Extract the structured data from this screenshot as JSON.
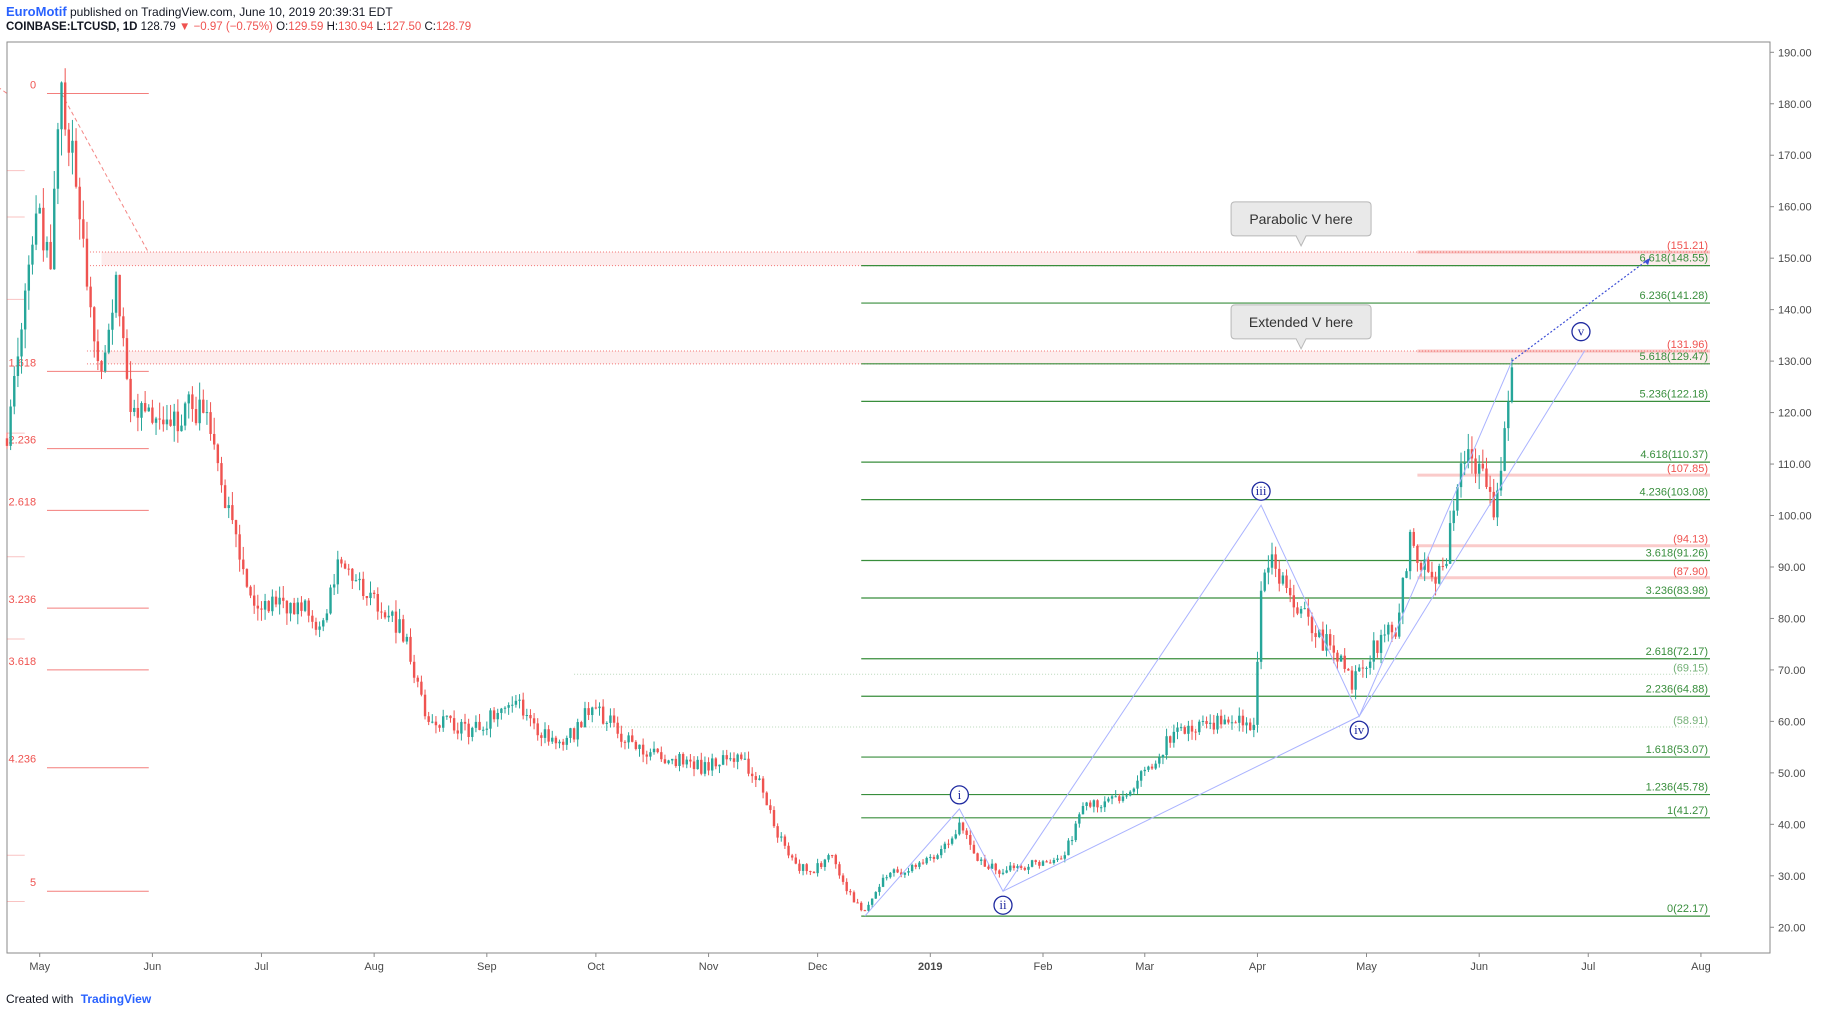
{
  "header": {
    "author": "EuroMotif",
    "published": "published on TradingView.com, June 10, 2019 20:39:31 EDT",
    "symbol": "COINBASE:LTCUSD, 1D",
    "last": "128.79",
    "arrow": "▼",
    "change": "−0.97 (−0.75%)",
    "o_label": "O:",
    "o": "129.59",
    "h_label": "H:",
    "h": "130.94",
    "l_label": "L:",
    "l": "127.50",
    "c_label": "C:",
    "c": "128.79"
  },
  "footer": {
    "created": "Created with",
    "brand": "TradingView"
  },
  "colors": {
    "up": "#26a69a",
    "down": "#ef5350",
    "fib_green": "#388e3c",
    "fib_red": "#ef5350",
    "zone": "#f8c8c8",
    "wave": "#1f2aa0",
    "trend": "#aab3ff"
  },
  "chart_data": {
    "type": "candlestick",
    "title": "",
    "ylim": [
      15,
      192
    ],
    "y_ticks": [
      "20.00",
      "30.00",
      "40.00",
      "50.00",
      "60.00",
      "70.00",
      "80.00",
      "90.00",
      "100.00",
      "110.00",
      "120.00",
      "130.00",
      "140.00",
      "150.00",
      "160.00",
      "170.00",
      "180.00",
      "190.00"
    ],
    "x_ticks": [
      "May",
      "Jun",
      "Jul",
      "Aug",
      "Sep",
      "Oct",
      "Nov",
      "Dec",
      "2019",
      "Feb",
      "Mar",
      "Apr",
      "May",
      "Jun",
      "Jul",
      "Aug"
    ],
    "x_range": [
      "2018-04-22",
      "2019-08-20"
    ],
    "price_path": [
      [
        "2018-04-22",
        115
      ],
      [
        "2018-04-26",
        135
      ],
      [
        "2018-04-30",
        158
      ],
      [
        "2018-05-04",
        150
      ],
      [
        "2018-05-07",
        182
      ],
      [
        "2018-05-12",
        160
      ],
      [
        "2018-05-17",
        128
      ],
      [
        "2018-05-22",
        145
      ],
      [
        "2018-05-27",
        118
      ],
      [
        "2018-06-01",
        120
      ],
      [
        "2018-06-05",
        118
      ],
      [
        "2018-06-10",
        120
      ],
      [
        "2018-06-16",
        122
      ],
      [
        "2018-06-22",
        100
      ],
      [
        "2018-06-28",
        85
      ],
      [
        "2018-07-05",
        82
      ],
      [
        "2018-07-12",
        82
      ],
      [
        "2018-07-18",
        78
      ],
      [
        "2018-07-22",
        90
      ],
      [
        "2018-07-25",
        88
      ],
      [
        "2018-07-30",
        85
      ],
      [
        "2018-08-05",
        82
      ],
      [
        "2018-08-10",
        75
      ],
      [
        "2018-08-15",
        62
      ],
      [
        "2018-08-20",
        60
      ],
      [
        "2018-08-26",
        58
      ],
      [
        "2018-09-01",
        60
      ],
      [
        "2018-09-06",
        63
      ],
      [
        "2018-09-10",
        64
      ],
      [
        "2018-09-15",
        58
      ],
      [
        "2018-09-20",
        56
      ],
      [
        "2018-09-25",
        58
      ],
      [
        "2018-09-29",
        63
      ],
      [
        "2018-10-05",
        60
      ],
      [
        "2018-10-11",
        55
      ],
      [
        "2018-10-20",
        53
      ],
      [
        "2018-10-31",
        51
      ],
      [
        "2018-11-08",
        53
      ],
      [
        "2018-11-14",
        50
      ],
      [
        "2018-11-20",
        38
      ],
      [
        "2018-11-25",
        32
      ],
      [
        "2018-11-30",
        31
      ],
      [
        "2018-12-05",
        34
      ],
      [
        "2018-12-09",
        27
      ],
      [
        "2018-12-14",
        23
      ],
      [
        "2018-12-20",
        30
      ],
      [
        "2018-12-28",
        32
      ],
      [
        "2019-01-03",
        34
      ],
      [
        "2019-01-09",
        40
      ],
      [
        "2019-01-14",
        33
      ],
      [
        "2019-01-20",
        31
      ],
      [
        "2019-01-28",
        32
      ],
      [
        "2019-02-07",
        34
      ],
      [
        "2019-02-12",
        44
      ],
      [
        "2019-02-18",
        44
      ],
      [
        "2019-02-24",
        46
      ],
      [
        "2019-03-05",
        54
      ],
      [
        "2019-03-10",
        58
      ],
      [
        "2019-03-20",
        60
      ],
      [
        "2019-03-31",
        60
      ],
      [
        "2019-04-02",
        85
      ],
      [
        "2019-04-05",
        90
      ],
      [
        "2019-04-11",
        83
      ],
      [
        "2019-04-16",
        78
      ],
      [
        "2019-04-23",
        73
      ],
      [
        "2019-04-27",
        67
      ],
      [
        "2019-05-03",
        74
      ],
      [
        "2019-05-09",
        78
      ],
      [
        "2019-05-13",
        95
      ],
      [
        "2019-05-18",
        90
      ],
      [
        "2019-05-22",
        88
      ],
      [
        "2019-05-27",
        113
      ],
      [
        "2019-06-01",
        108
      ],
      [
        "2019-06-05",
        102
      ],
      [
        "2019-06-08",
        115
      ],
      [
        "2019-06-10",
        129
      ]
    ],
    "fib_left": {
      "levels": [
        {
          "label": "0",
          "price": 182
        },
        {
          "label": "1.618",
          "price": 128
        },
        {
          "label": "2.236",
          "price": 113
        },
        {
          "label": "2.618",
          "price": 101
        },
        {
          "label": "3.236",
          "price": 82
        },
        {
          "label": "3.618",
          "price": 70
        },
        {
          "label": "4.236",
          "price": 51
        },
        {
          "label": "5",
          "price": 27
        }
      ],
      "faint": [
        116,
        167,
        158,
        142,
        92,
        76,
        34,
        25
      ]
    },
    "fib_right": [
      {
        "label": "6.618(148.55)",
        "price": 148.55
      },
      {
        "label": "6.236(141.28)",
        "price": 141.28
      },
      {
        "label": "5.618(129.47)",
        "price": 129.47
      },
      {
        "label": "5.236(122.18)",
        "price": 122.18
      },
      {
        "label": "4.618(110.37)",
        "price": 110.37
      },
      {
        "label": "4.236(103.08)",
        "price": 103.08
      },
      {
        "label": "3.618(91.26)",
        "price": 91.26
      },
      {
        "label": "3.236(83.98)",
        "price": 83.98
      },
      {
        "label": "2.618(72.17)",
        "price": 72.17
      },
      {
        "label": "2.236(64.88)",
        "price": 64.88
      },
      {
        "label": "1.618(53.07)",
        "price": 53.07
      },
      {
        "label": "1.236(45.78)",
        "price": 45.78
      },
      {
        "label": "1(41.27)",
        "price": 41.27
      },
      {
        "label": "0(22.17)",
        "price": 22.17
      }
    ],
    "red_labels": [
      {
        "label": "(151.21)",
        "price": 151.21
      },
      {
        "label": "(131.96)",
        "price": 131.96
      },
      {
        "label": "(107.85)",
        "price": 107.85
      },
      {
        "label": "(94.13)",
        "price": 94.13
      },
      {
        "label": "(87.90)",
        "price": 87.9
      }
    ],
    "faint_green_labels": [
      {
        "label": "(69.15)",
        "price": 69.15
      },
      {
        "label": "(58.91)",
        "price": 58.91
      }
    ],
    "zones": [
      [
        148.55,
        151.21
      ],
      [
        129.47,
        131.96
      ]
    ],
    "waves": [
      {
        "label": "i",
        "date": "2019-01-09",
        "price": 43,
        "pos": "above"
      },
      {
        "label": "ii",
        "date": "2019-01-21",
        "price": 27,
        "pos": "below"
      },
      {
        "label": "iii",
        "date": "2019-04-02",
        "price": 102,
        "pos": "above"
      },
      {
        "label": "iv",
        "date": "2019-04-29",
        "price": 61,
        "pos": "below"
      },
      {
        "label": "v",
        "date": "2019-06-29",
        "price": 133,
        "pos": "above"
      }
    ],
    "wave_path": [
      [
        "2018-12-14",
        22.17
      ],
      [
        "2019-01-09",
        43
      ],
      [
        "2019-01-21",
        27
      ],
      [
        "2019-04-02",
        102
      ],
      [
        "2019-04-29",
        61
      ],
      [
        "2019-06-10",
        130
      ]
    ],
    "projection": [
      [
        "2019-06-10",
        130
      ],
      [
        "2019-07-18",
        150
      ]
    ],
    "trendlines": [
      [
        [
          "2019-01-21",
          27
        ],
        [
          "2019-04-29",
          61
        ]
      ],
      [
        [
          "2019-04-29",
          61
        ],
        [
          "2019-06-30",
          132
        ]
      ]
    ],
    "callouts": [
      {
        "text": "Parabolic V here",
        "date": "2019-04-13",
        "price": 152
      },
      {
        "text": "Extended V here",
        "date": "2019-04-13",
        "price": 132
      }
    ]
  }
}
